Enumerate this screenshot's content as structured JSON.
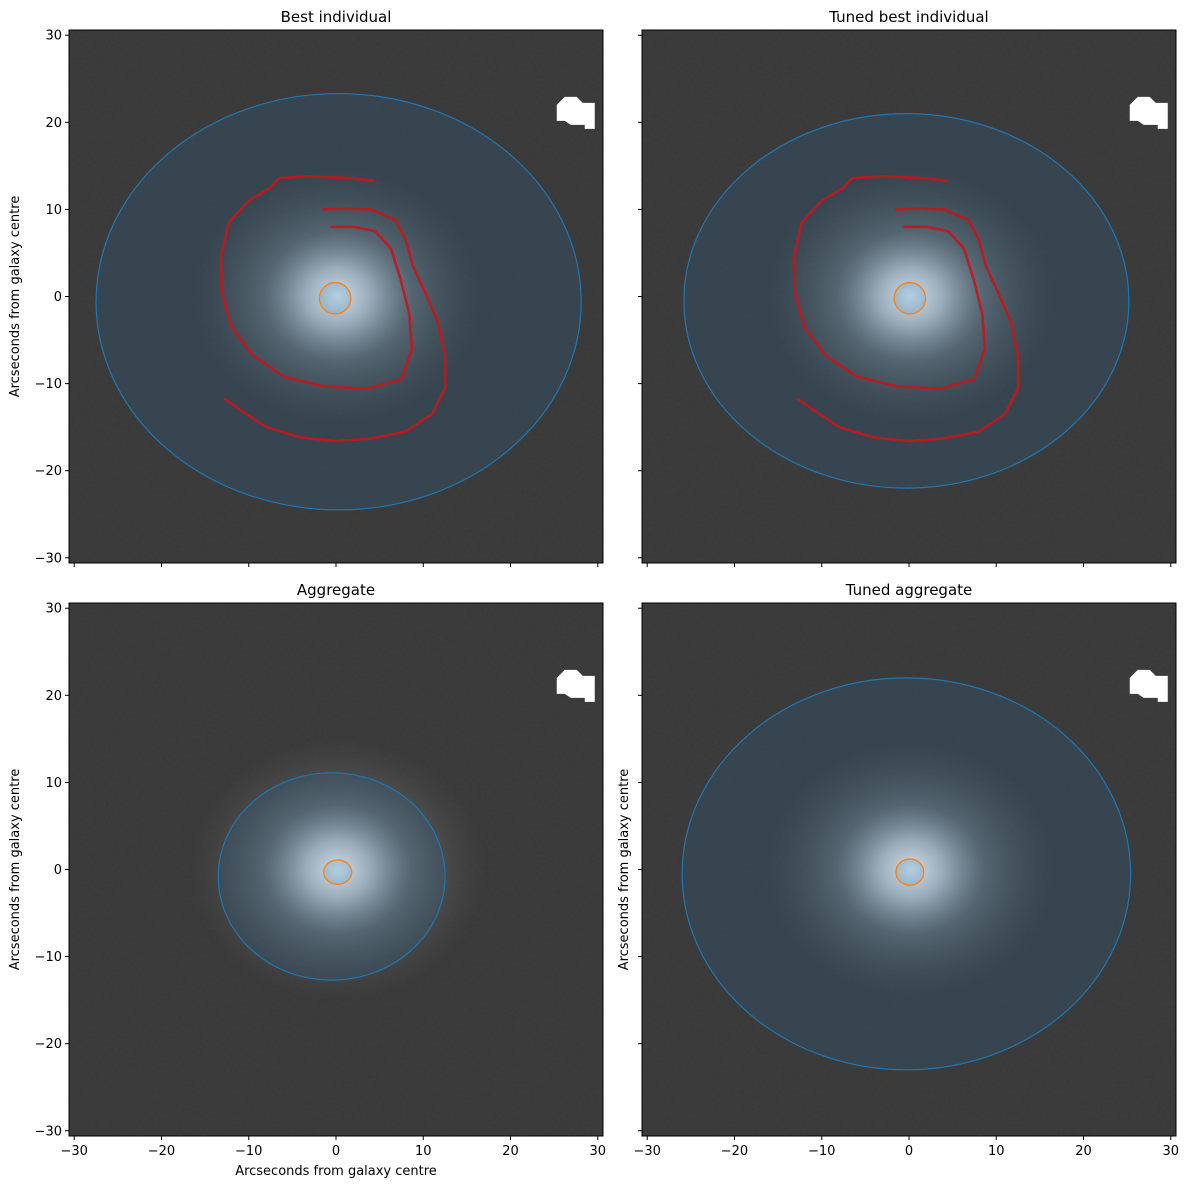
{
  "chart_data": [
    {
      "type": "scatter",
      "title": "Best individual",
      "xlabel": "",
      "ylabel": "Arcseconds from galaxy centre",
      "xlim": [
        -30.6,
        30.6
      ],
      "ylim": [
        -30.6,
        30.6
      ],
      "xticks": [
        "−30",
        "−20",
        "−10",
        "0",
        "10",
        "20",
        "30"
      ],
      "yticks": [
        "−30",
        "−20",
        "−10",
        "0",
        "10",
        "20",
        "30"
      ],
      "show_xtick_labels": false,
      "show_ytick_labels": true,
      "disk": {
        "cx": 0.3,
        "cy": -0.6,
        "rx": 27.8,
        "ry": 23.9
      },
      "bulge": {
        "cx": -0.1,
        "cy": -0.2,
        "rx": 1.8,
        "ry": 1.8
      },
      "arms": [
        [
          [
            4.3,
            13.3
          ],
          [
            1.5,
            13.6
          ],
          [
            -3.0,
            13.8
          ],
          [
            -6.5,
            13.6
          ],
          [
            -7.5,
            12.5
          ],
          [
            -10.0,
            11.0
          ],
          [
            -12.3,
            8.5
          ],
          [
            -13.2,
            4.5
          ],
          [
            -13.1,
            0.5
          ],
          [
            -12.0,
            -3.5
          ],
          [
            -9.5,
            -6.8
          ],
          [
            -6.0,
            -9.2
          ],
          [
            -1.5,
            -10.3
          ],
          [
            3.5,
            -10.6
          ],
          [
            7.5,
            -9.5
          ],
          [
            8.7,
            -6.0
          ],
          [
            8.4,
            -2.0
          ],
          [
            7.4,
            2.0
          ],
          [
            6.3,
            5.5
          ],
          [
            4.5,
            7.5
          ],
          [
            2.0,
            8.0
          ],
          [
            -0.5,
            8.0
          ]
        ],
        [
          [
            -1.5,
            10.0
          ],
          [
            1.0,
            10.1
          ],
          [
            4.0,
            10.0
          ],
          [
            6.8,
            8.8
          ],
          [
            8.0,
            6.5
          ],
          [
            8.8,
            3.5
          ],
          [
            10.2,
            0.5
          ],
          [
            11.7,
            -3.0
          ],
          [
            12.5,
            -7.0
          ],
          [
            12.5,
            -10.5
          ],
          [
            11.0,
            -13.5
          ],
          [
            8.0,
            -15.5
          ],
          [
            4.0,
            -16.3
          ],
          [
            0.0,
            -16.6
          ],
          [
            -4.0,
            -16.2
          ],
          [
            -8.0,
            -15.0
          ],
          [
            -11.0,
            -13.0
          ],
          [
            -12.7,
            -11.8
          ]
        ]
      ]
    },
    {
      "type": "scatter",
      "title": "Tuned best individual",
      "xlabel": "",
      "ylabel": "",
      "xlim": [
        -30.6,
        30.6
      ],
      "ylim": [
        -30.6,
        30.6
      ],
      "xticks": [
        "−30",
        "−20",
        "−10",
        "0",
        "10",
        "20",
        "30"
      ],
      "yticks": [
        "−30",
        "−20",
        "−10",
        "0",
        "10",
        "20",
        "30"
      ],
      "show_xtick_labels": false,
      "show_ytick_labels": false,
      "disk": {
        "cx": -0.3,
        "cy": -0.5,
        "rx": 25.5,
        "ry": 21.5
      },
      "bulge": {
        "cx": 0.1,
        "cy": -0.2,
        "rx": 1.8,
        "ry": 1.8
      },
      "arms": [
        [
          [
            4.3,
            13.3
          ],
          [
            1.5,
            13.6
          ],
          [
            -3.0,
            13.8
          ],
          [
            -6.5,
            13.6
          ],
          [
            -7.5,
            12.5
          ],
          [
            -10.0,
            11.0
          ],
          [
            -12.3,
            8.5
          ],
          [
            -13.2,
            4.5
          ],
          [
            -13.1,
            0.5
          ],
          [
            -12.0,
            -3.5
          ],
          [
            -9.5,
            -6.8
          ],
          [
            -6.0,
            -9.2
          ],
          [
            -1.5,
            -10.3
          ],
          [
            3.5,
            -10.6
          ],
          [
            7.5,
            -9.5
          ],
          [
            8.7,
            -6.0
          ],
          [
            8.4,
            -2.0
          ],
          [
            7.4,
            2.0
          ],
          [
            6.3,
            5.5
          ],
          [
            4.5,
            7.5
          ],
          [
            2.0,
            8.0
          ],
          [
            -0.5,
            8.0
          ]
        ],
        [
          [
            -1.5,
            10.0
          ],
          [
            1.0,
            10.1
          ],
          [
            4.0,
            10.0
          ],
          [
            6.8,
            8.8
          ],
          [
            8.0,
            6.5
          ],
          [
            8.8,
            3.5
          ],
          [
            10.2,
            0.5
          ],
          [
            11.7,
            -3.0
          ],
          [
            12.5,
            -7.0
          ],
          [
            12.5,
            -10.5
          ],
          [
            11.0,
            -13.5
          ],
          [
            8.0,
            -15.5
          ],
          [
            4.0,
            -16.3
          ],
          [
            0.0,
            -16.6
          ],
          [
            -4.0,
            -16.2
          ],
          [
            -8.0,
            -15.0
          ],
          [
            -11.0,
            -13.0
          ],
          [
            -12.7,
            -11.8
          ]
        ]
      ]
    },
    {
      "type": "scatter",
      "title": "Aggregate",
      "xlabel": "Arcseconds from galaxy centre",
      "ylabel": "Arcseconds from galaxy centre",
      "xlim": [
        -30.6,
        30.6
      ],
      "ylim": [
        -30.6,
        30.6
      ],
      "xticks": [
        "−30",
        "−20",
        "−10",
        "0",
        "10",
        "20",
        "30"
      ],
      "yticks": [
        "−30",
        "−20",
        "−10",
        "0",
        "10",
        "20",
        "30"
      ],
      "show_xtick_labels": true,
      "show_ytick_labels": true,
      "disk": {
        "cx": -0.5,
        "cy": -0.8,
        "rx": 13.0,
        "ry": 11.9
      },
      "bulge": {
        "cx": 0.2,
        "cy": -0.3,
        "rx": 1.6,
        "ry": 1.4
      },
      "arms": []
    },
    {
      "type": "scatter",
      "title": "Tuned aggregate",
      "xlabel": "",
      "ylabel": "Arcseconds from galaxy centre",
      "xlim": [
        -30.6,
        30.6
      ],
      "ylim": [
        -30.6,
        30.6
      ],
      "xticks": [
        "−30",
        "−20",
        "−10",
        "0",
        "10",
        "20",
        "30"
      ],
      "yticks": [
        "−30",
        "−20",
        "−10",
        "0",
        "10",
        "20",
        "30"
      ],
      "show_xtick_labels": true,
      "show_ytick_labels": false,
      "disk": {
        "cx": -0.3,
        "cy": -0.5,
        "rx": 25.7,
        "ry": 22.5
      },
      "bulge": {
        "cx": 0.1,
        "cy": -0.3,
        "rx": 1.6,
        "ry": 1.5
      },
      "arms": []
    }
  ],
  "colors": {
    "disk_stroke": "#1f77b4",
    "disk_fill": "#1f77b4",
    "bulge_stroke": "#ff7f0e",
    "arm_stroke": "#c4161c",
    "sky_background": "#3a3a3a",
    "masked_star": "#ffffff"
  }
}
